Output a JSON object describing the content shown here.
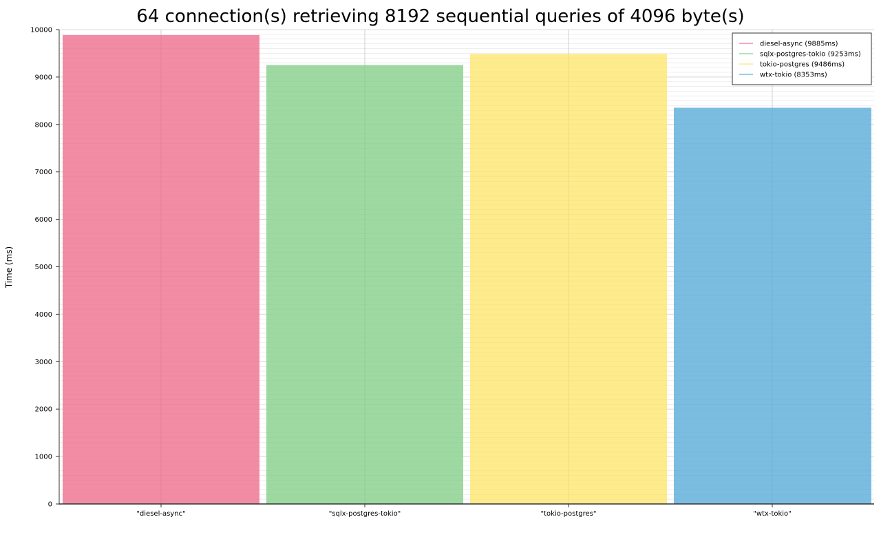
{
  "chart_data": {
    "type": "bar",
    "title": "64 connection(s) retrieving 8192 sequential queries of 4096 byte(s)",
    "xlabel": "",
    "ylabel": "Time (ms)",
    "ylim": [
      0,
      10000
    ],
    "yticks": [
      "0",
      "1000",
      "2000",
      "3000",
      "4000",
      "5000",
      "6000",
      "7000",
      "8000",
      "9000",
      "10000"
    ],
    "categories": [
      "\"diesel-async\"",
      "\"sqlx-postgres-tokio\"",
      "\"tokio-postgres\"",
      "\"wtx-tokio\""
    ],
    "values": [
      9885,
      9253,
      9486,
      8353
    ],
    "colors": [
      "#f28ca4",
      "#9ed9a2",
      "#feeb8c",
      "#7bbde1"
    ],
    "grid": true,
    "legend": {
      "placement": "top-right",
      "entries": [
        {
          "label": "diesel-async (9885ms)",
          "color": "#f28ca4"
        },
        {
          "label": "sqlx-postgres-tokio (9253ms)",
          "color": "#9ed9a2"
        },
        {
          "label": "tokio-postgres (9486ms)",
          "color": "#feeb8c"
        },
        {
          "label": "wtx-tokio (8353ms)",
          "color": "#7bbde1"
        }
      ]
    }
  }
}
